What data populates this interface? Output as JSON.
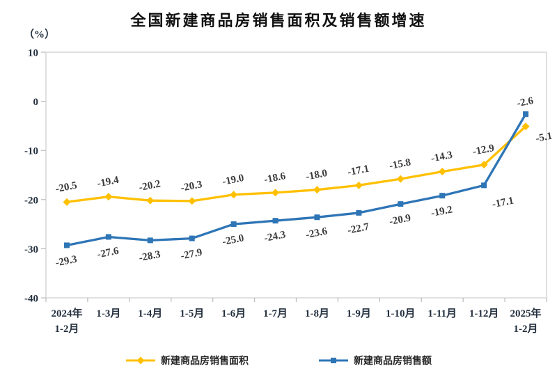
{
  "title": "全国新建商品房销售面积及销售额增速",
  "y_axis": {
    "unit_label": "（%）",
    "ticks": [
      10,
      0,
      -10,
      -20,
      -30,
      -40
    ],
    "min": -40,
    "max": 10
  },
  "chart_data": {
    "type": "line",
    "title": "全国新建商品房销售面积及销售额增速",
    "ylabel": "（%）",
    "xlabel": "",
    "ylim": [
      -40,
      10
    ],
    "ytick_step": 10,
    "grid": false,
    "legend_position": "bottom",
    "categories": [
      "2024年\n1-2月",
      "1-3月",
      "1-4月",
      "1-5月",
      "1-6月",
      "1-7月",
      "1-8月",
      "1-9月",
      "1-10月",
      "1-11月",
      "1-12月",
      "2025年\n1-2月"
    ],
    "series": [
      {
        "name": "新建商品房销售面积",
        "color": "#FFC000",
        "marker": "diamond",
        "values": [
          -20.5,
          -19.4,
          -20.2,
          -20.3,
          -19.0,
          -18.6,
          -18.0,
          -17.1,
          -15.8,
          -14.3,
          -12.9,
          -5.1
        ]
      },
      {
        "name": "新建商品房销售额",
        "color": "#2E75B6",
        "marker": "square",
        "values": [
          -29.3,
          -27.6,
          -28.3,
          -27.9,
          -25.0,
          -24.3,
          -23.6,
          -22.7,
          -20.9,
          -19.2,
          -17.1,
          -2.6
        ]
      }
    ]
  },
  "colors": {
    "axis_text": "#24303f",
    "data_label": "#3a3a3a",
    "plot_border": "#d6d6d6",
    "tick": "#bfbfbf",
    "background": "#ffffff"
  }
}
